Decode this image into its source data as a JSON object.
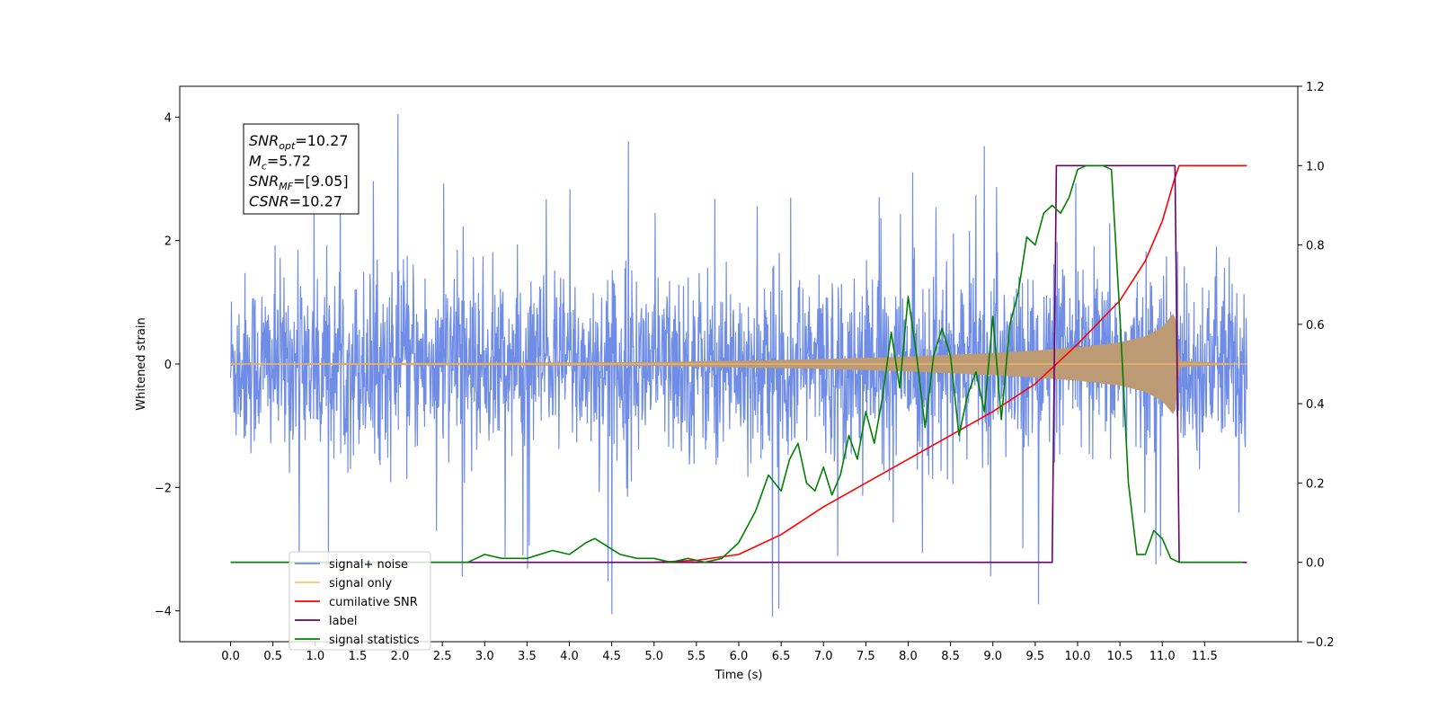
{
  "chart_data": {
    "type": "line",
    "xlabel": "Time (s)",
    "ylabel": "Whitened strain",
    "xlim": [
      -0.6,
      12.6
    ],
    "ylim": [
      -4.5,
      4.5
    ],
    "y2lim": [
      -0.2,
      1.2
    ],
    "x_ticks": [
      0.0,
      0.5,
      1.0,
      1.5,
      2.0,
      2.5,
      3.0,
      3.5,
      4.0,
      4.5,
      5.0,
      5.5,
      6.0,
      6.5,
      7.0,
      7.5,
      8.0,
      8.5,
      9.0,
      9.5,
      10.0,
      10.5,
      11.0,
      11.5
    ],
    "x_tick_labels": [
      "0.0",
      "0.5",
      "1.0",
      "1.5",
      "2.0",
      "2.5",
      "3.0",
      "3.5",
      "4.0",
      "4.5",
      "5.0",
      "5.5",
      "6.0",
      "6.5",
      "7.0",
      "7.5",
      "8.0",
      "8.5",
      "9.0",
      "9.5",
      "10.0",
      "10.5",
      "11.0",
      "11.5"
    ],
    "y_ticks": [
      -4,
      -2,
      0,
      2,
      4
    ],
    "y_tick_labels": [
      "−4",
      "−2",
      "0",
      "2",
      "4"
    ],
    "y2_ticks": [
      -0.2,
      0.0,
      0.2,
      0.4,
      0.6,
      0.8,
      1.0,
      1.2
    ],
    "y2_tick_labels": [
      "−0.2",
      "0.0",
      "0.2",
      "0.4",
      "0.6",
      "0.8",
      "1.0",
      "1.2"
    ],
    "legend_position": "lower-left",
    "annotations": [
      {
        "name": "SNR",
        "sub": "opt",
        "text": "=10.27"
      },
      {
        "name": "M",
        "sub": "c",
        "text": "=5.72"
      },
      {
        "name": "SNR",
        "sub": "MF",
        "text": "=[9.05]"
      },
      {
        "name": "CSNR",
        "sub": "",
        "text": "=10.27"
      }
    ],
    "series": [
      {
        "name": "signal+ noise",
        "color": "#6f8de6",
        "axis": "left",
        "style": "noise",
        "x_range": [
          0.0,
          12.0
        ],
        "typical_amplitude": 1.6,
        "peak_amplitude": 4.1
      },
      {
        "name": "signal only",
        "color": "#ffc36e",
        "fill_color": "#bc9a74",
        "axis": "left",
        "style": "chirp-envelope",
        "x": [
          0.0,
          5.0,
          7.0,
          8.0,
          9.0,
          9.5,
          10.0,
          10.5,
          10.8,
          11.0,
          11.15,
          11.2,
          12.0
        ],
        "amplitude": [
          0.01,
          0.03,
          0.08,
          0.12,
          0.18,
          0.22,
          0.27,
          0.35,
          0.45,
          0.6,
          0.85,
          0.05,
          0.0
        ]
      },
      {
        "name": "cumilative SNR",
        "color": "#ff0000",
        "axis": "right",
        "x": [
          5.0,
          5.5,
          6.0,
          6.5,
          7.0,
          7.5,
          8.0,
          8.5,
          9.0,
          9.5,
          10.0,
          10.5,
          10.8,
          11.0,
          11.15,
          11.2,
          12.0
        ],
        "y": [
          0.0,
          0.005,
          0.02,
          0.07,
          0.14,
          0.2,
          0.26,
          0.32,
          0.38,
          0.45,
          0.55,
          0.66,
          0.76,
          0.86,
          0.97,
          1.0,
          1.0
        ]
      },
      {
        "name": "label",
        "color": "#6a006a",
        "axis": "right",
        "x": [
          0.0,
          9.7,
          9.75,
          11.15,
          11.2,
          12.0
        ],
        "y": [
          0.0,
          0.0,
          1.0,
          1.0,
          0.0,
          0.0
        ]
      },
      {
        "name": "signal statistics",
        "color": "#008000",
        "axis": "right",
        "x": [
          0.0,
          2.8,
          3.0,
          3.2,
          3.5,
          3.8,
          4.0,
          4.2,
          4.3,
          4.45,
          4.6,
          4.8,
          5.0,
          5.2,
          5.4,
          5.6,
          5.8,
          6.0,
          6.2,
          6.35,
          6.5,
          6.6,
          6.7,
          6.8,
          6.9,
          7.0,
          7.1,
          7.2,
          7.3,
          7.4,
          7.5,
          7.6,
          7.7,
          7.8,
          7.9,
          8.0,
          8.1,
          8.2,
          8.3,
          8.4,
          8.5,
          8.6,
          8.7,
          8.8,
          8.9,
          9.0,
          9.1,
          9.2,
          9.3,
          9.4,
          9.5,
          9.6,
          9.7,
          9.8,
          9.9,
          10.0,
          10.1,
          10.2,
          10.3,
          10.4,
          10.5,
          10.6,
          10.7,
          10.8,
          10.9,
          11.0,
          11.1,
          11.2,
          11.4,
          11.6,
          11.95
        ],
        "y": [
          0.0,
          0.0,
          0.02,
          0.01,
          0.01,
          0.03,
          0.02,
          0.05,
          0.06,
          0.04,
          0.02,
          0.01,
          0.01,
          0.0,
          0.01,
          0.0,
          0.01,
          0.05,
          0.13,
          0.22,
          0.18,
          0.26,
          0.3,
          0.2,
          0.18,
          0.24,
          0.17,
          0.22,
          0.32,
          0.26,
          0.38,
          0.3,
          0.42,
          0.58,
          0.44,
          0.67,
          0.52,
          0.34,
          0.52,
          0.59,
          0.52,
          0.32,
          0.42,
          0.48,
          0.38,
          0.62,
          0.36,
          0.6,
          0.68,
          0.82,
          0.8,
          0.88,
          0.9,
          0.88,
          0.92,
          0.99,
          1.0,
          1.0,
          1.0,
          0.99,
          0.62,
          0.2,
          0.02,
          0.02,
          0.08,
          0.06,
          0.01,
          0.0,
          0.0,
          0.0,
          0.0
        ]
      }
    ]
  }
}
